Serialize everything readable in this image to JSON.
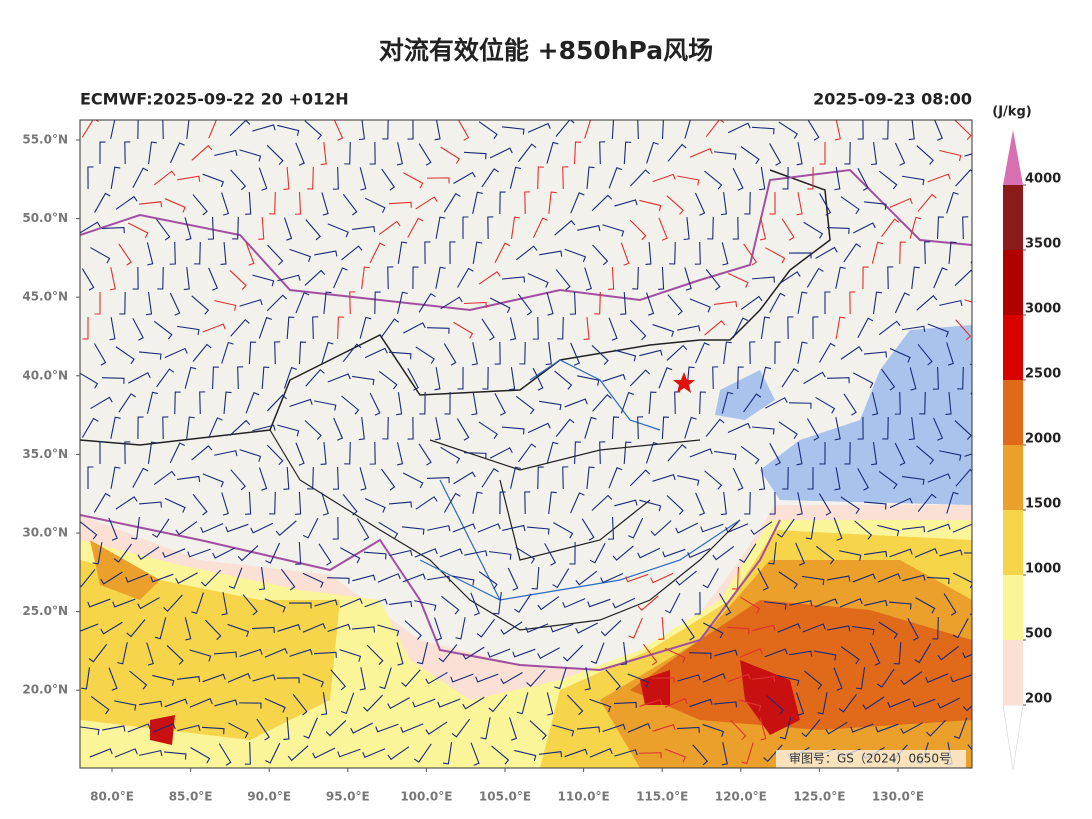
{
  "title": "对流有效位能 +850hPa风场",
  "subtitle_left": "ECMWF:2025-09-22 20 +012H",
  "subtitle_right": "2025-09-23 08:00",
  "map": {
    "lat_labels": [
      "55.0°N",
      "50.0°N",
      "45.0°N",
      "40.0°N",
      "35.0°N",
      "30.0°N",
      "25.0°N",
      "20.0°N"
    ],
    "lon_labels": [
      "80.0°E",
      "85.0°E",
      "90.0°E",
      "95.0°E",
      "100.0°E",
      "105.0°E",
      "110.0°E",
      "115.0°E",
      "120.0°E",
      "125.0°E",
      "130.0°E"
    ],
    "approval": "审图号：GS（2024）0650号"
  },
  "colorbar": {
    "unit": "(J/kg)",
    "levels": [
      200,
      500,
      1000,
      1500,
      2000,
      2500,
      3000,
      3500,
      4000
    ],
    "colors": [
      "#ffffff",
      "#fbe0d5",
      "#fbf59a",
      "#f6d54a",
      "#eaa02a",
      "#e06a1a",
      "#d90000",
      "#b00000",
      "#8b1a1a",
      "#d86fb0"
    ]
  }
}
